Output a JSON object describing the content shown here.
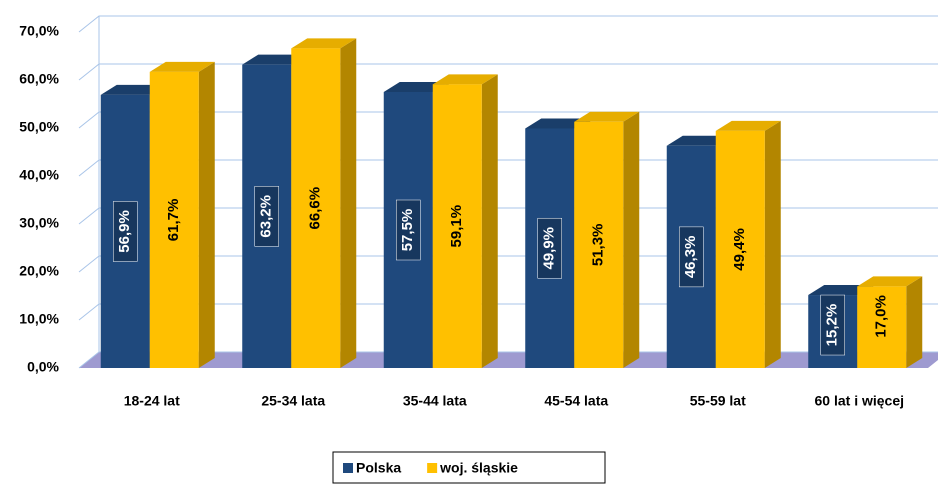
{
  "chart_data": {
    "type": "bar3d",
    "categories": [
      "18-24 lat",
      "25-34 lata",
      "35-44 lata",
      "45-54 lata",
      "55-59 lat",
      "60 lat i więcej"
    ],
    "series": [
      {
        "name": "Polska",
        "color": "#1f497d",
        "values": [
          56.9,
          63.2,
          57.5,
          49.9,
          46.3,
          15.2
        ],
        "value_labels": [
          "56,9%",
          "63,2%",
          "57,5%",
          "49,9%",
          "46,3%",
          "15,2%"
        ]
      },
      {
        "name": "woj. śląskie",
        "color": "#ffc000",
        "values": [
          61.7,
          66.6,
          59.1,
          51.3,
          49.4,
          17.0
        ],
        "value_labels": [
          "61,7%",
          "66,6%",
          "59,1%",
          "51,3%",
          "49,4%",
          "17,0%"
        ]
      }
    ],
    "ylim": [
      0,
      70
    ],
    "yticks": [
      {
        "value": 0,
        "label": "0,0%"
      },
      {
        "value": 10,
        "label": "10,0%"
      },
      {
        "value": 20,
        "label": "20,0%"
      },
      {
        "value": 30,
        "label": "30,0%"
      },
      {
        "value": 40,
        "label": "40,0%"
      },
      {
        "value": 50,
        "label": "50,0%"
      },
      {
        "value": 60,
        "label": "60,0%"
      },
      {
        "value": 70,
        "label": "70,0%"
      }
    ],
    "grid": true,
    "legend": "bottom"
  }
}
